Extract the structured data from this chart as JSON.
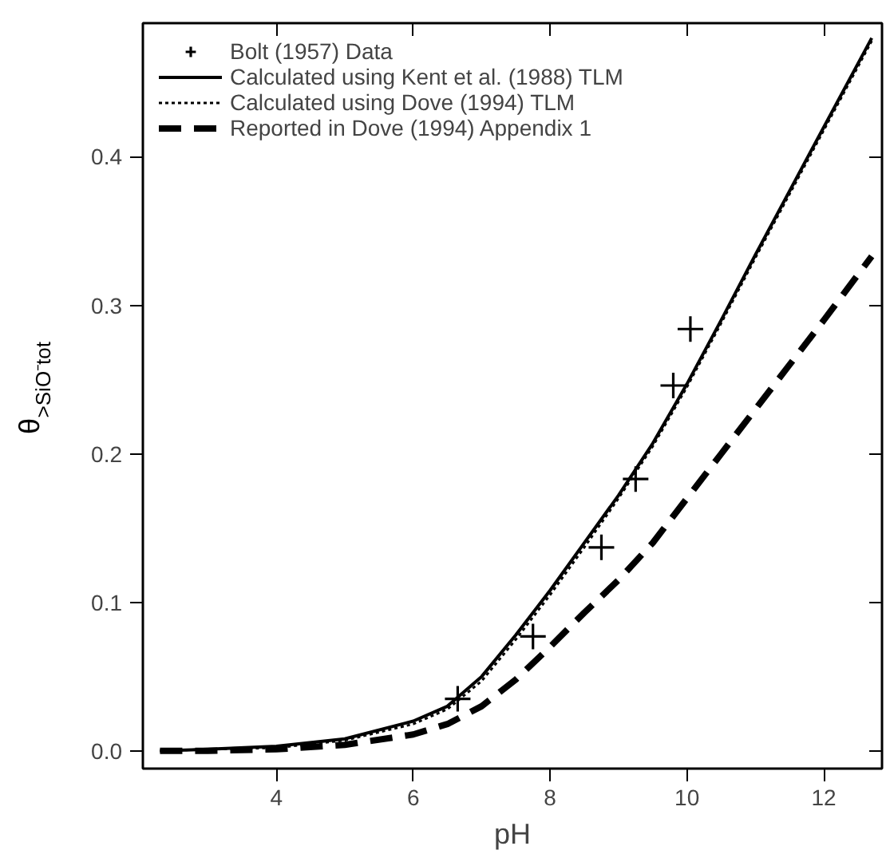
{
  "chart_data": {
    "type": "line",
    "xlabel": "pH",
    "ylabel": "θ$_{>SiO⁻tot}$",
    "xlim": [
      2.05,
      12.85
    ],
    "ylim": [
      -0.012,
      0.49
    ],
    "xticks": [
      4,
      6,
      8,
      10,
      12
    ],
    "yticks": [
      {
        "value": 0,
        "label": "0.0"
      },
      0.1,
      0.2,
      0.3,
      0.4
    ],
    "grid": false,
    "legend": "top left",
    "series": [
      {
        "name": "Bolt (1957) Data",
        "type": "scatter",
        "marker": "cross",
        "color": "#000000",
        "x": [
          6.65,
          7.75,
          8.75,
          9.25,
          9.8,
          10.05
        ],
        "values": [
          0.035,
          0.077,
          0.137,
          0.183,
          0.246,
          0.284
        ]
      },
      {
        "name": "Calculated using Kent et al. (1988) TLM",
        "type": "line",
        "line_style": "solid",
        "color": "#000000",
        "x": [
          2.3,
          3,
          4,
          5,
          6,
          6.5,
          7,
          7.5,
          8,
          8.5,
          9,
          9.5,
          10,
          10.5,
          11,
          11.5,
          12,
          12.7
        ],
        "values": [
          0,
          0.001,
          0.003,
          0.008,
          0.02,
          0.03,
          0.05,
          0.078,
          0.108,
          0.14,
          0.172,
          0.207,
          0.247,
          0.29,
          0.334,
          0.377,
          0.42,
          0.48
        ]
      },
      {
        "name": "Calculated using Dove (1994) TLM",
        "type": "line",
        "line_style": "dotted",
        "color": "#000000",
        "x": [
          2.3,
          3,
          4,
          5,
          6,
          6.5,
          7,
          7.5,
          8,
          8.5,
          9,
          9.5,
          10,
          10.5,
          11,
          11.5,
          12,
          12.7
        ],
        "values": [
          0,
          0.001,
          0.002,
          0.007,
          0.018,
          0.028,
          0.047,
          0.075,
          0.105,
          0.137,
          0.17,
          0.205,
          0.245,
          0.288,
          0.332,
          0.375,
          0.418,
          0.478
        ]
      },
      {
        "name": "Reported in Dove (1994) Appendix 1",
        "type": "line",
        "line_style": "dashed",
        "color": "#000000",
        "x": [
          2.3,
          3,
          4,
          5,
          6,
          6.5,
          7,
          7.5,
          8,
          8.5,
          9,
          9.5,
          10,
          10.5,
          11,
          11.5,
          12,
          12.7
        ],
        "values": [
          0,
          0,
          0.001,
          0.004,
          0.011,
          0.018,
          0.03,
          0.048,
          0.07,
          0.093,
          0.115,
          0.14,
          0.17,
          0.2,
          0.23,
          0.26,
          0.29,
          0.333
        ]
      }
    ]
  }
}
